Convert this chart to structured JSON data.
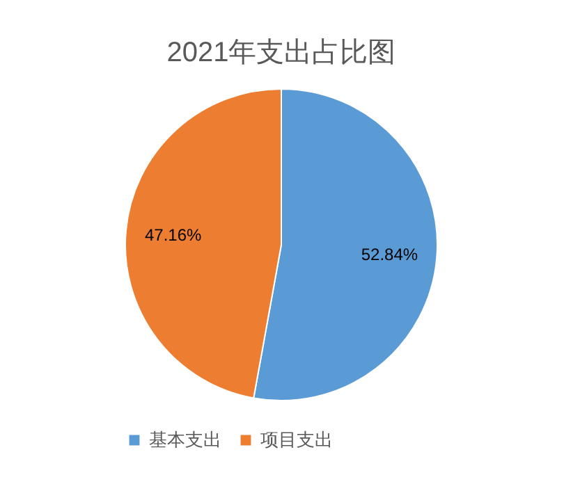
{
  "chart_data": {
    "type": "pie",
    "title": "2021年支出占比图",
    "categories": [
      "基本支出",
      "项目支出"
    ],
    "values": [
      52.84,
      47.16
    ],
    "colors": [
      "#5b9bd5",
      "#ed7d31"
    ],
    "value_labels": [
      "52.84%",
      "47.16%"
    ],
    "legend": "bottom"
  }
}
